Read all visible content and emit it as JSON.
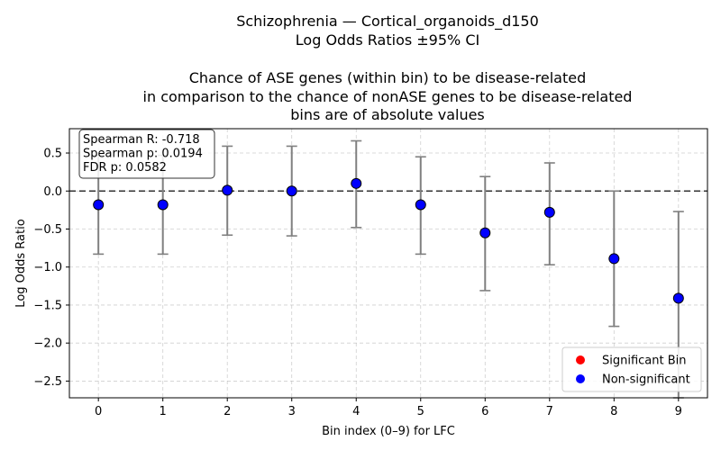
{
  "chart_data": {
    "type": "scatter",
    "title_lines": [
      "Schizophrenia — Cortical_organoids_d150",
      "Log Odds Ratios ±95% CI",
      "",
      "Chance of ASE genes (within bin) to be disease-related",
      "in comparison to the chance of nonASE genes to be disease-related",
      "bins are of absolute values"
    ],
    "xlabel": "Bin index (0–9) for LFC",
    "ylabel": "Log Odds Ratio",
    "x": [
      0,
      1,
      2,
      3,
      4,
      5,
      6,
      7,
      8,
      9
    ],
    "x_tick_labels": [
      "0",
      "1",
      "2",
      "3",
      "4",
      "5",
      "6",
      "7",
      "8",
      "9"
    ],
    "xlim": [
      -0.45,
      9.45
    ],
    "ylim": [
      -2.72,
      0.82
    ],
    "y_ticks": [
      0.5,
      0.0,
      -0.5,
      -1.0,
      -1.5,
      -2.0,
      -2.5
    ],
    "y_tick_labels": [
      "0.5",
      "0.0",
      "−0.5",
      "−1.0",
      "−1.5",
      "−2.0",
      "−2.5"
    ],
    "reference_line_y": 0.0,
    "grid": true,
    "series": [
      {
        "name": "Non-significant",
        "color": "#0000ff",
        "values": [
          -0.18,
          -0.18,
          0.01,
          0.0,
          0.1,
          -0.18,
          -0.55,
          -0.28,
          -0.89,
          -1.41
        ],
        "ci_low": [
          -0.83,
          -0.83,
          -0.58,
          -0.59,
          -0.48,
          -0.83,
          -1.31,
          -0.97,
          -1.78,
          -2.72
        ],
        "ci_high": [
          0.47,
          0.47,
          0.59,
          0.59,
          0.66,
          0.45,
          0.19,
          0.37,
          0.0,
          -0.27
        ]
      }
    ],
    "stats_lines": [
      "Spearman R: -0.718",
      "Spearman p: 0.0194",
      "FDR p: 0.0582"
    ],
    "legend": {
      "position": "bottom-right",
      "entries": [
        {
          "label": "Significant Bin",
          "color": "#ff0000"
        },
        {
          "label": "Non-significant",
          "color": "#0000ff"
        }
      ]
    }
  }
}
